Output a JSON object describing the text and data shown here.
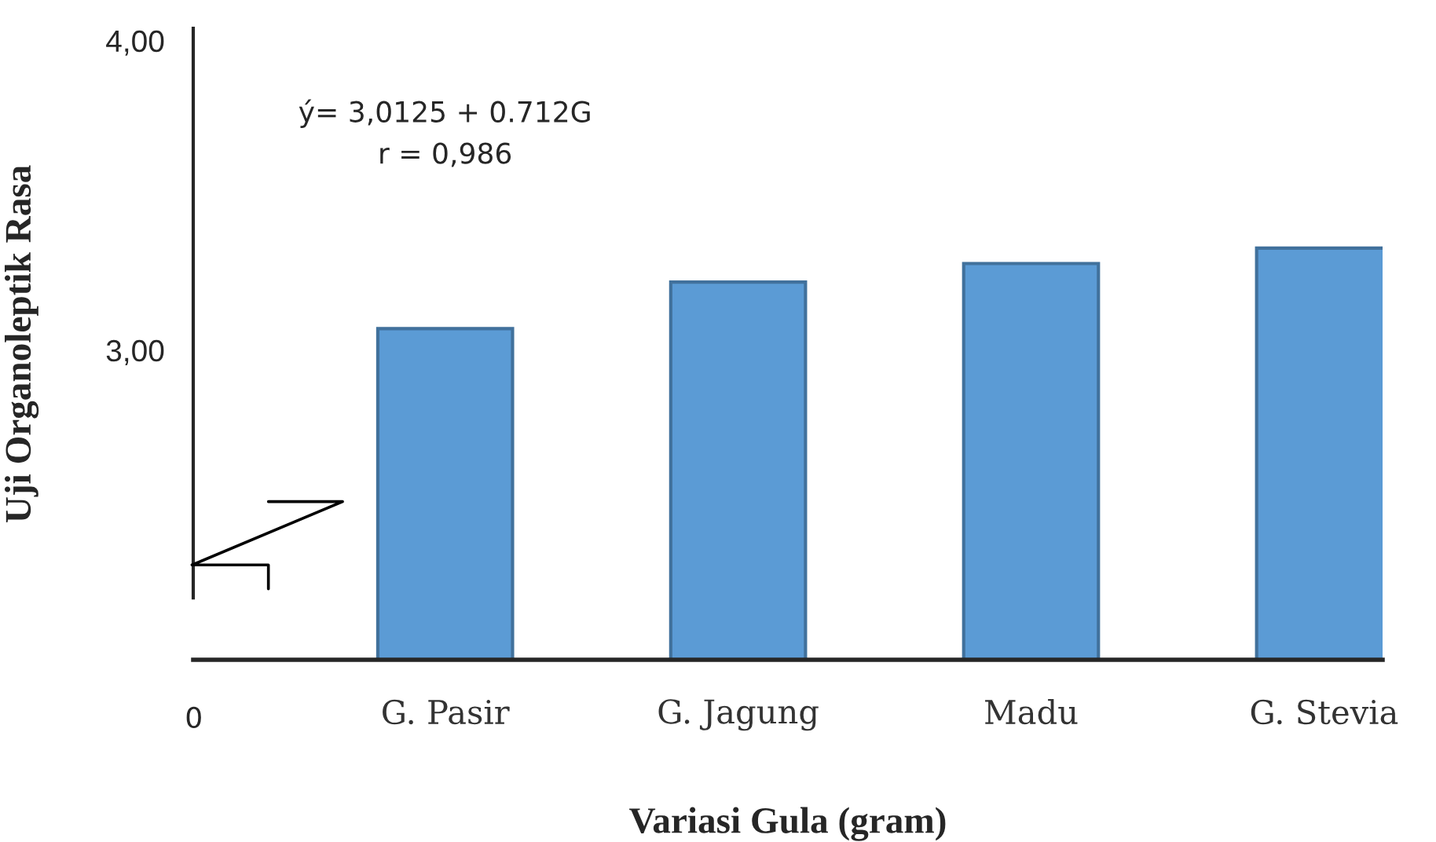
{
  "chart_data": {
    "type": "bar",
    "xlabel": "Variasi Gula (gram)",
    "ylabel": "Uji Organoleptik Rasa",
    "categories": [
      "G. Pasir",
      "G. Jagung",
      "Madu",
      "G. Stevia"
    ],
    "values": [
      3.07,
      3.22,
      3.28,
      3.33
    ],
    "color": "#5b9bd5",
    "ylim": [
      2.0,
      4.04
    ],
    "yticks": [
      {
        "value": 3.0,
        "label": "3,00"
      },
      {
        "value": 4.0,
        "label": "4,00"
      }
    ],
    "grid": false,
    "annotations": [
      "ý= 3,0125 + 0.712G",
      "r = 0,986",
      "0"
    ]
  }
}
